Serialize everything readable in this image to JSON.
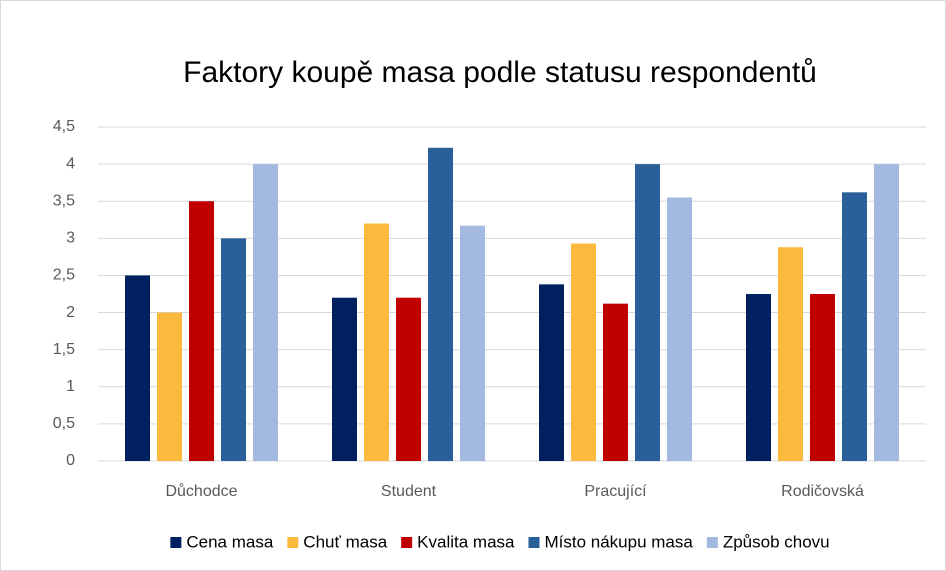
{
  "chart_data": {
    "type": "bar",
    "title": "Faktory koupě masa podle statusu respondentů",
    "categories": [
      "Důchodce",
      "Student",
      "Pracující",
      "Rodičovská"
    ],
    "series": [
      {
        "name": "Cena masa",
        "color": "#002060",
        "values": [
          2.5,
          2.2,
          2.38,
          2.25
        ]
      },
      {
        "name": "Chuť masa",
        "color": "#fbb93e",
        "values": [
          2.0,
          3.2,
          2.93,
          2.88
        ]
      },
      {
        "name": "Kvalita masa",
        "color": "#c00000",
        "values": [
          3.5,
          2.2,
          2.12,
          2.25
        ]
      },
      {
        "name": "Místo nákupu masa",
        "color": "#2a6099",
        "values": [
          3.0,
          4.22,
          4.0,
          3.62
        ]
      },
      {
        "name": "Způsob chovu",
        "color": "#a4b9e0",
        "values": [
          4.0,
          3.17,
          3.55,
          4.0
        ]
      }
    ],
    "ylim": [
      0,
      4.5
    ],
    "yticks": [
      0,
      {
        "value": 0.5,
        "label": "0,5"
      },
      1,
      {
        "value": 1.5,
        "label": "1,5"
      },
      2,
      {
        "value": 2.5,
        "label": "2,5"
      },
      3,
      {
        "value": 3.5,
        "label": "3,5"
      },
      4,
      {
        "value": 4.5,
        "label": "4,5"
      }
    ],
    "grid": true,
    "legend": "bottom"
  }
}
